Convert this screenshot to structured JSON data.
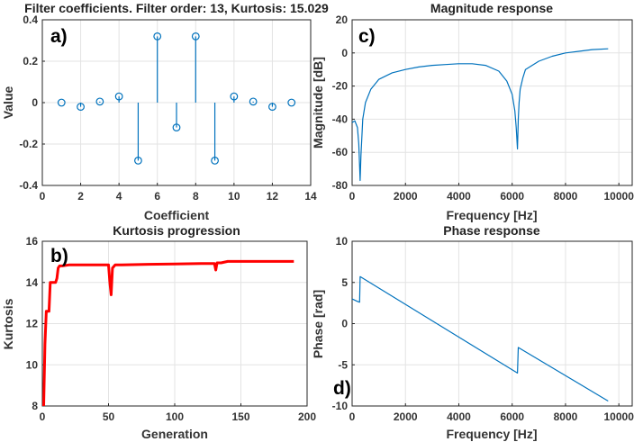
{
  "colors": {
    "stem": "#0072BD",
    "kurtosis_line": "#FF0000",
    "axes": "#262626"
  },
  "chart_data": [
    {
      "panel": "a)",
      "type": "stem",
      "title": "Filter coefficients. Filter order: 13, Kurtosis: 15.029",
      "xlabel": "Coefficient",
      "ylabel": "Value",
      "xlim": [
        0,
        14
      ],
      "ylim": [
        -0.4,
        0.4
      ],
      "xticks": [
        0,
        2,
        4,
        6,
        8,
        10,
        12,
        14
      ],
      "yticks": [
        -0.4,
        -0.2,
        0,
        0.2,
        0.4
      ],
      "grid": true,
      "x": [
        1,
        2,
        3,
        4,
        5,
        6,
        7,
        8,
        9,
        10,
        11,
        12,
        13
      ],
      "values": [
        0.0,
        -0.02,
        0.005,
        0.03,
        -0.28,
        0.32,
        -0.12,
        0.32,
        -0.28,
        0.03,
        0.005,
        -0.02,
        0.0
      ]
    },
    {
      "panel": "c)",
      "type": "line",
      "title": "Magnitude response",
      "xlabel": "Frequency [Hz]",
      "ylabel": "Magnitude [dB]",
      "xlim": [
        0,
        10500
      ],
      "ylim": [
        -80,
        20
      ],
      "xticks": [
        0,
        2000,
        4000,
        6000,
        8000,
        10000
      ],
      "yticks": [
        -80,
        -60,
        -40,
        -20,
        0,
        20
      ],
      "grid": true,
      "x": [
        0,
        100,
        200,
        250,
        300,
        330,
        400,
        500,
        700,
        1000,
        1500,
        2000,
        2500,
        3000,
        3500,
        4000,
        4500,
        5000,
        5500,
        5800,
        6000,
        6100,
        6150,
        6200,
        6230,
        6260,
        6300,
        6400,
        6500,
        7000,
        7500,
        8000,
        8500,
        9000,
        9600
      ],
      "y": [
        -42,
        -41,
        -45,
        -55,
        -77,
        -62,
        -40,
        -30,
        -22,
        -16,
        -12,
        -10,
        -8.5,
        -7.5,
        -7,
        -6.5,
        -6.5,
        -7.5,
        -11,
        -17,
        -25,
        -35,
        -45,
        -58,
        -40,
        -30,
        -22,
        -15,
        -10,
        -5,
        -2,
        0,
        1,
        2,
        2.5
      ]
    },
    {
      "panel": "b)",
      "type": "line",
      "title": "Kurtosis progression",
      "xlabel": "Generation",
      "ylabel": "Kurtosis",
      "xlim": [
        0,
        200
      ],
      "ylim": [
        8,
        16
      ],
      "xticks": [
        0,
        50,
        100,
        150,
        200
      ],
      "yticks": [
        8,
        10,
        12,
        14,
        16
      ],
      "grid": true,
      "x": [
        1,
        2,
        3,
        4,
        5,
        6,
        7,
        8,
        9,
        10,
        11,
        12,
        13,
        15,
        20,
        30,
        40,
        50,
        51,
        52,
        53,
        55,
        60,
        80,
        100,
        120,
        130,
        131,
        132,
        133,
        135,
        140,
        150,
        170,
        190
      ],
      "y": [
        8.0,
        11.0,
        12.6,
        12.6,
        12.6,
        14.0,
        14.0,
        14.0,
        14.0,
        14.0,
        14.2,
        14.7,
        14.8,
        14.8,
        14.85,
        14.85,
        14.85,
        14.85,
        14.0,
        13.4,
        14.7,
        14.85,
        14.85,
        14.88,
        14.9,
        14.92,
        14.92,
        14.6,
        14.95,
        14.95,
        14.95,
        15.02,
        15.02,
        15.02,
        15.02
      ]
    },
    {
      "panel": "d)",
      "type": "line",
      "title": "Phase response",
      "xlabel": "Frequency [Hz]",
      "ylabel": "Phase [rad]",
      "xlim": [
        0,
        10500
      ],
      "ylim": [
        -10,
        10
      ],
      "xticks": [
        0,
        2000,
        4000,
        6000,
        8000,
        10000
      ],
      "yticks": [
        -10,
        -5,
        0,
        5,
        10
      ],
      "grid": true,
      "x": [
        0,
        200,
        280,
        300,
        6200,
        6230,
        9600
      ],
      "y": [
        3.0,
        2.7,
        2.6,
        5.7,
        -6.0,
        -2.9,
        -9.4
      ]
    }
  ]
}
